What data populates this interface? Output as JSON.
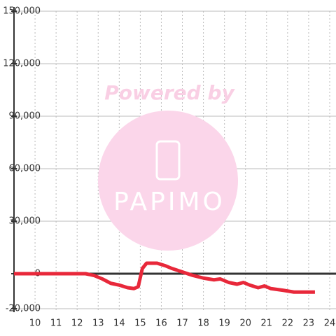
{
  "chart_data": {
    "type": "line",
    "watermark": {
      "top": "Powered by",
      "logo": "PAPIMO"
    },
    "series": [
      {
        "color": "#e8283a",
        "x": [
          9.0,
          12.4,
          12.8,
          13.2,
          13.6,
          14.0,
          14.4,
          14.7,
          14.9,
          15.1,
          15.3,
          15.8,
          16.2,
          16.5,
          17.0,
          17.5,
          18.0,
          18.5,
          18.8,
          19.2,
          19.6,
          19.9,
          20.2,
          20.6,
          20.9,
          21.2,
          21.8,
          22.3,
          23.3
        ],
        "values": [
          0,
          0,
          -1000,
          -3000,
          -5500,
          -6500,
          -8000,
          -8500,
          -7500,
          3000,
          6000,
          6000,
          4500,
          3000,
          1000,
          -1000,
          -2500,
          -3500,
          -3000,
          -5000,
          -6000,
          -5000,
          -6500,
          -8000,
          -7000,
          -8500,
          -9500,
          -10500,
          -10500
        ]
      }
    ],
    "xlim": [
      9,
      24.3
    ],
    "xticks": [
      10,
      11,
      12,
      13,
      14,
      15,
      16,
      17,
      18,
      19,
      20,
      21,
      22,
      23,
      24
    ],
    "ylim": [
      -22000,
      150000
    ],
    "yticks": [
      {
        "value": -20000,
        "label": "-20,000"
      },
      0,
      {
        "value": 30000,
        "label": "30,000"
      },
      {
        "value": 60000,
        "label": "60,000"
      },
      {
        "value": 90000,
        "label": "90,000"
      },
      {
        "value": 120000,
        "label": "120,000"
      },
      {
        "value": 150000,
        "label": "150,000"
      }
    ],
    "grid": true
  }
}
